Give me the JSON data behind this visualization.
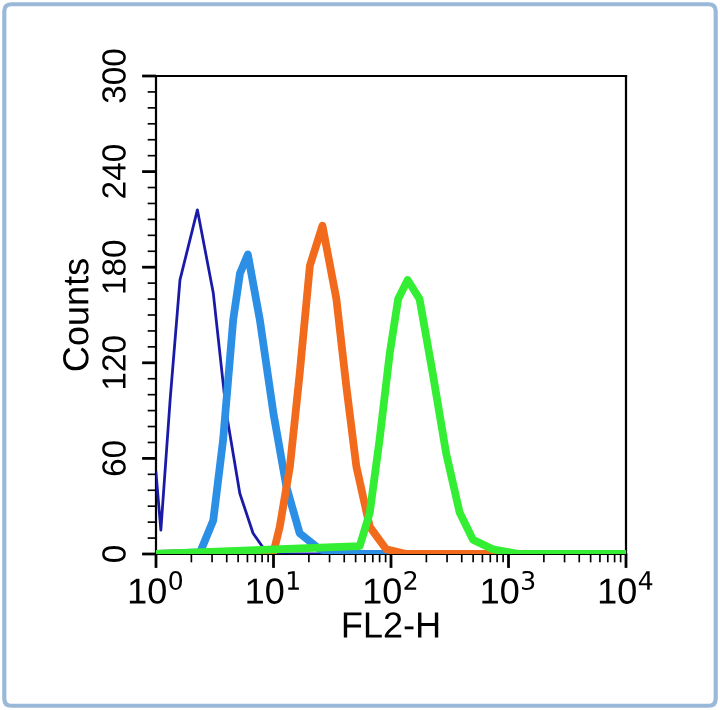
{
  "chart_data": {
    "type": "line",
    "xlabel": "FL2-H",
    "ylabel": "Counts",
    "log": "x",
    "xlim": [
      1,
      10000
    ],
    "ylim": [
      0,
      300
    ],
    "xticks": [
      {
        "value": 1,
        "label": "10$^{0}$"
      },
      {
        "value": 10,
        "label": "10$^{1}$"
      },
      {
        "value": 100,
        "label": "10$^{2}$"
      },
      {
        "value": 1000,
        "label": "10$^{3}$"
      },
      {
        "value": 10000,
        "label": "10$^{4}$"
      }
    ],
    "yticks": [
      0,
      60,
      120,
      180,
      240,
      300
    ],
    "grid": false,
    "legend": false,
    "marker": "none",
    "line_style": "solid",
    "series": [
      {
        "color": "#1a1aa8",
        "x": [
          1,
          1.1,
          1.32,
          1.6,
          2.25,
          3.07,
          3.98,
          5.17,
          6.7,
          8.7,
          10,
          10000
        ],
        "values": [
          51,
          15,
          97,
          172,
          216,
          164,
          88,
          38,
          13,
          1,
          0,
          0
        ]
      },
      {
        "color": "#2b8fe6",
        "x": [
          1,
          2.37,
          3.07,
          3.73,
          4.54,
          5.18,
          6.05,
          7.65,
          10,
          12.9,
          16.7,
          24.7,
          36,
          10000
        ],
        "values": [
          0,
          1,
          21,
          72,
          147,
          176,
          188,
          147,
          88,
          42,
          13,
          3,
          0,
          0
        ]
      },
      {
        "color": "#f26a1b",
        "x": [
          1,
          10,
          11.3,
          13.8,
          16.7,
          20.4,
          26.1,
          34.3,
          41.7,
          50.7,
          66,
          91,
          135,
          10000
        ],
        "values": [
          0,
          1,
          17,
          55,
          113,
          181,
          206,
          160,
          105,
          55,
          17,
          3,
          0,
          0
        ]
      },
      {
        "color": "#33ee33",
        "x": [
          1,
          54.2,
          66,
          80,
          97.6,
          115,
          138.6,
          175,
          227,
          295,
          384,
          498,
          736,
          1230,
          10000
        ],
        "values": [
          0,
          5,
          26,
          72,
          126,
          160,
          172,
          160,
          113,
          63,
          26,
          9,
          3,
          0,
          0
        ]
      }
    ]
  }
}
